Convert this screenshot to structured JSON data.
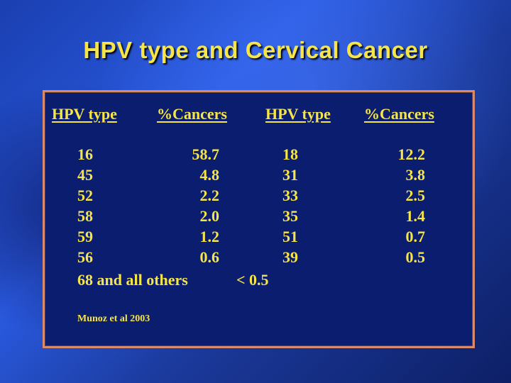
{
  "slide": {
    "title": "HPV type and Cervical Cancer"
  },
  "table": {
    "headers": [
      "HPV type",
      "%Cancers",
      "HPV type",
      "%Cancers"
    ],
    "rows": [
      {
        "type_a": "16",
        "pct_a": "58.7",
        "type_b": "18",
        "pct_b": "12.2"
      },
      {
        "type_a": "45",
        "pct_a": "4.8",
        "type_b": "31",
        "pct_b": "3.8"
      },
      {
        "type_a": "52",
        "pct_a": "2.2",
        "type_b": "33",
        "pct_b": "2.5"
      },
      {
        "type_a": "58",
        "pct_a": "2.0",
        "type_b": "35",
        "pct_b": "1.4"
      },
      {
        "type_a": "59",
        "pct_a": "1.2",
        "type_b": "51",
        "pct_b": "0.7"
      },
      {
        "type_a": "56",
        "pct_a": "0.6",
        "type_b": "39",
        "pct_b": "0.5"
      }
    ],
    "others_label": "68 and all others",
    "others_value": "< 0.5",
    "source": "Munoz et al 2003"
  },
  "colors": {
    "text": "#f5e44a",
    "panel_background": "#0b1d6e",
    "panel_border": "#d98a6a"
  }
}
